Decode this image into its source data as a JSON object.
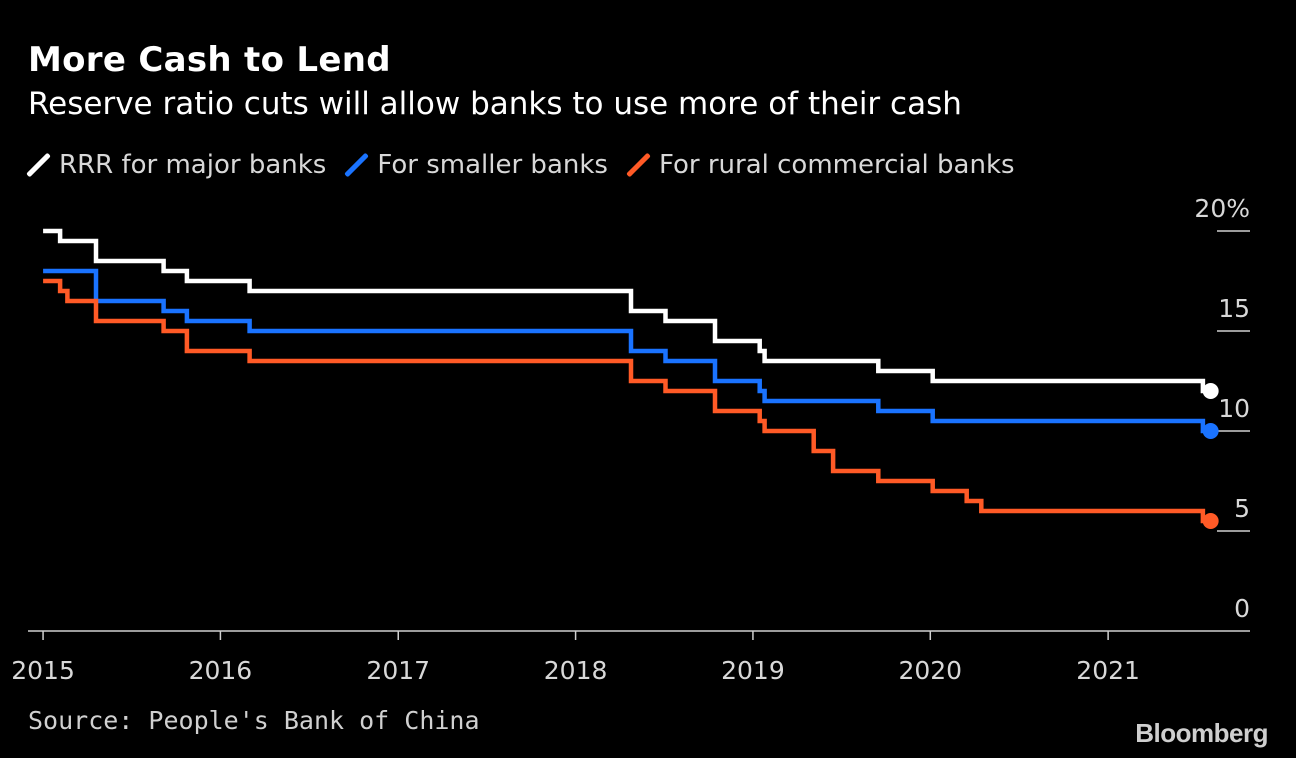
{
  "title": "More Cash to Lend",
  "subtitle": "Reserve ratio cuts will allow banks to use more of their cash",
  "source": "Source: People's Bank of China",
  "brand": "Bloomberg",
  "chart_data": {
    "type": "line",
    "style": "step",
    "x_axis": {
      "type": "date",
      "range": [
        "2014-12-01",
        "2021-10-20"
      ],
      "ticks": [
        "2015-01-01",
        "2016-01-01",
        "2017-01-01",
        "2018-01-01",
        "2019-01-01",
        "2020-01-01",
        "2021-01-01"
      ],
      "tick_labels": [
        "2015",
        "2016",
        "2017",
        "2018",
        "2019",
        "2020",
        "2021"
      ]
    },
    "y_axis": {
      "range": [
        0,
        20
      ],
      "ticks": [
        0,
        5,
        10,
        15,
        20
      ],
      "tick_labels": [
        "0",
        "5",
        "10",
        "15",
        "20%"
      ],
      "position": "right"
    },
    "grid": false,
    "legend_placement": "top-left",
    "end_markers": true,
    "series": [
      {
        "name": "RRR for major banks",
        "color": "#ffffff",
        "points": [
          [
            "2015-01-01",
            20.0
          ],
          [
            "2015-02-05",
            19.5
          ],
          [
            "2015-04-20",
            18.5
          ],
          [
            "2015-09-06",
            18.0
          ],
          [
            "2015-10-24",
            17.5
          ],
          [
            "2016-03-01",
            17.0
          ],
          [
            "2018-04-25",
            16.0
          ],
          [
            "2018-07-05",
            15.5
          ],
          [
            "2018-10-15",
            14.5
          ],
          [
            "2019-01-15",
            14.0
          ],
          [
            "2019-01-25",
            13.5
          ],
          [
            "2019-09-16",
            13.0
          ],
          [
            "2020-01-06",
            12.5
          ],
          [
            "2021-07-15",
            12.0
          ],
          [
            "2021-07-31",
            12.0
          ]
        ]
      },
      {
        "name": "For smaller banks",
        "color": "#1a73ff",
        "points": [
          [
            "2015-01-01",
            18.0
          ],
          [
            "2015-04-20",
            16.5
          ],
          [
            "2015-09-06",
            16.0
          ],
          [
            "2015-10-24",
            15.5
          ],
          [
            "2016-03-01",
            15.0
          ],
          [
            "2018-04-25",
            14.0
          ],
          [
            "2018-07-05",
            13.5
          ],
          [
            "2018-10-15",
            12.5
          ],
          [
            "2019-01-15",
            12.0
          ],
          [
            "2019-01-25",
            11.5
          ],
          [
            "2019-09-16",
            11.0
          ],
          [
            "2020-01-06",
            10.5
          ],
          [
            "2021-07-15",
            10.0
          ],
          [
            "2021-07-31",
            10.0
          ]
        ]
      },
      {
        "name": "For rural commercial banks",
        "color": "#ff5a26",
        "points": [
          [
            "2015-01-01",
            17.5
          ],
          [
            "2015-02-05",
            17.0
          ],
          [
            "2015-02-20",
            16.5
          ],
          [
            "2015-04-20",
            15.5
          ],
          [
            "2015-09-06",
            15.0
          ],
          [
            "2015-10-24",
            14.0
          ],
          [
            "2016-03-01",
            13.5
          ],
          [
            "2018-04-25",
            12.5
          ],
          [
            "2018-07-05",
            12.0
          ],
          [
            "2018-10-15",
            11.0
          ],
          [
            "2019-01-15",
            10.5
          ],
          [
            "2019-01-25",
            10.0
          ],
          [
            "2019-05-06",
            9.0
          ],
          [
            "2019-06-15",
            8.0
          ],
          [
            "2019-09-16",
            7.5
          ],
          [
            "2020-01-06",
            7.0
          ],
          [
            "2020-03-16",
            6.5
          ],
          [
            "2020-04-15",
            6.0
          ],
          [
            "2021-07-15",
            5.5
          ],
          [
            "2021-07-31",
            5.5
          ]
        ]
      }
    ]
  }
}
